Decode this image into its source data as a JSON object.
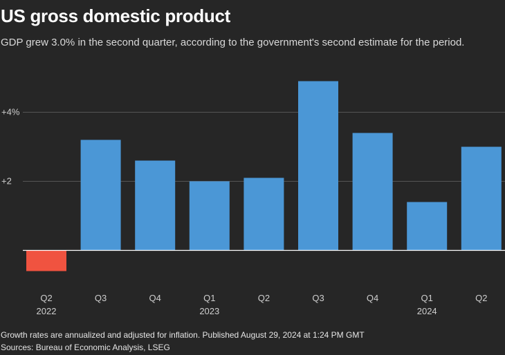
{
  "header": {
    "title": "US gross domestic product",
    "subtitle": "GDP grew 3.0% in the second quarter, according to the government's second estimate for the period."
  },
  "footer": {
    "note": "Growth rates are annualized and adjusted for inflation. Published August 29, 2024 at 1:24 PM GMT",
    "source": "Sources: Bureau of Economic Analysis, LSEG"
  },
  "colors": {
    "background": "#262626",
    "positive": "#4b97d6",
    "negative": "#f05340",
    "grid": "#555555",
    "zero_line": "#ffffff"
  },
  "chart_data": {
    "type": "bar",
    "title": "US gross domestic product",
    "xlabel": "",
    "ylabel": "",
    "categories": [
      "Q2",
      "Q3",
      "Q4",
      "Q1",
      "Q2",
      "Q3",
      "Q4",
      "Q1",
      "Q2"
    ],
    "years": [
      "2022",
      "",
      "",
      "2023",
      "",
      "",
      "",
      "2024",
      ""
    ],
    "values": [
      -0.6,
      3.2,
      2.6,
      2.0,
      2.1,
      4.9,
      3.4,
      1.4,
      3.0
    ],
    "yticks": [
      {
        "value": 2,
        "label": "+2"
      },
      {
        "value": 4,
        "label": "+4%"
      }
    ],
    "ylim": [
      -0.6,
      5.0
    ],
    "grid": true
  }
}
